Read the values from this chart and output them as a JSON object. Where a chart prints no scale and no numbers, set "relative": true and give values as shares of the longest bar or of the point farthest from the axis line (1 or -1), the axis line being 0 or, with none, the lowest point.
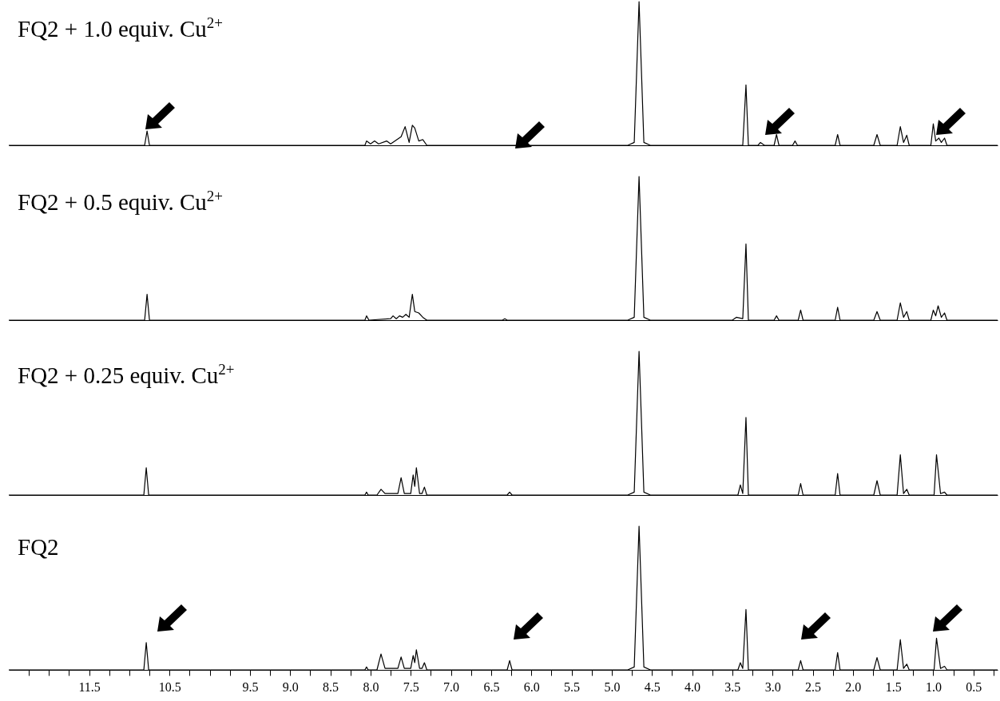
{
  "chart_data": [
    {
      "type": "line",
      "relative": true,
      "title": "FQ2 + 1.0 equiv. Cu$^{2+}$",
      "color": "#000000",
      "xlim": [
        12.5,
        0.2
      ],
      "tick_labels": false,
      "x": [
        12.5,
        10.81,
        10.78,
        10.75,
        8.07,
        8.05,
        8.0,
        7.95,
        7.9,
        7.8,
        7.75,
        7.62,
        7.57,
        7.52,
        7.48,
        7.45,
        7.4,
        7.35,
        7.3,
        4.8,
        4.72,
        4.66,
        4.6,
        4.52,
        3.37,
        3.33,
        3.3,
        3.18,
        3.15,
        3.1,
        2.98,
        2.95,
        2.92,
        2.75,
        2.72,
        2.69,
        2.22,
        2.19,
        2.16,
        1.74,
        1.7,
        1.66,
        1.45,
        1.41,
        1.37,
        1.33,
        1.3,
        1.03,
        1.0,
        0.97,
        0.93,
        0.9,
        0.86,
        0.83,
        0.2
      ],
      "values": [
        0,
        0,
        0.1,
        0,
        0,
        0.03,
        0.01,
        0.03,
        0.01,
        0.03,
        0.01,
        0.06,
        0.13,
        0.02,
        0.14,
        0.12,
        0.03,
        0.04,
        0,
        0,
        0.02,
        1,
        0.02,
        0,
        0,
        0.42,
        0,
        0,
        0.02,
        0,
        0,
        0.075,
        0,
        0,
        0.03,
        0,
        0,
        0.075,
        0,
        0,
        0.075,
        0,
        0,
        0.13,
        0.02,
        0.07,
        0,
        0,
        0.15,
        0.03,
        0.05,
        0.02,
        0.05,
        0,
        0
      ]
    },
    {
      "type": "line",
      "relative": true,
      "title": "FQ2 + 0.5 equiv. Cu$^{2+}$",
      "color": "#000000",
      "xlim": [
        12.5,
        0.2
      ],
      "tick_labels": false,
      "x": [
        12.5,
        10.81,
        10.78,
        10.75,
        8.07,
        8.05,
        8.02,
        7.75,
        7.72,
        7.68,
        7.64,
        7.6,
        7.56,
        7.52,
        7.48,
        7.45,
        7.4,
        7.35,
        7.3,
        6.36,
        6.33,
        6.3,
        4.8,
        4.72,
        4.66,
        4.6,
        4.52,
        3.5,
        3.45,
        3.37,
        3.33,
        3.3,
        2.98,
        2.95,
        2.92,
        2.68,
        2.65,
        2.62,
        2.22,
        2.19,
        2.16,
        1.74,
        1.7,
        1.66,
        1.45,
        1.41,
        1.37,
        1.33,
        1.3,
        1.03,
        1.0,
        0.97,
        0.94,
        0.9,
        0.86,
        0.83,
        0.2
      ],
      "values": [
        0,
        0,
        0.18,
        0,
        0,
        0.03,
        0,
        0.01,
        0.03,
        0.01,
        0.03,
        0.02,
        0.04,
        0.02,
        0.18,
        0.06,
        0.05,
        0.02,
        0,
        0,
        0.01,
        0,
        0,
        0.02,
        1,
        0.02,
        0,
        0,
        0.02,
        0.01,
        0.53,
        0,
        0,
        0.03,
        0,
        0,
        0.07,
        0,
        0,
        0.09,
        0,
        0,
        0.06,
        0,
        0,
        0.12,
        0.02,
        0.06,
        0,
        0,
        0.07,
        0.03,
        0.1,
        0.02,
        0.05,
        0,
        0
      ]
    },
    {
      "type": "line",
      "relative": true,
      "title": "FQ2 + 0.25 equiv. Cu$^{2+}$",
      "color": "#000000",
      "xlim": [
        12.5,
        0.2
      ],
      "tick_labels": false,
      "x": [
        12.5,
        10.82,
        10.79,
        10.76,
        8.07,
        8.05,
        8.03,
        7.92,
        7.87,
        7.82,
        7.66,
        7.62,
        7.58,
        7.5,
        7.47,
        7.45,
        7.43,
        7.39,
        7.36,
        7.33,
        7.3,
        6.3,
        6.27,
        6.24,
        4.8,
        4.72,
        4.66,
        4.6,
        4.52,
        3.43,
        3.4,
        3.37,
        3.33,
        3.3,
        2.68,
        2.65,
        2.62,
        2.22,
        2.19,
        2.16,
        1.74,
        1.7,
        1.66,
        1.45,
        1.41,
        1.37,
        1.33,
        1.3,
        0.99,
        0.96,
        0.91,
        0.86,
        0.83,
        0.2
      ],
      "values": [
        0,
        0,
        0.19,
        0,
        0,
        0.02,
        0,
        0,
        0.04,
        0.01,
        0.01,
        0.12,
        0.01,
        0.01,
        0.14,
        0.06,
        0.19,
        0.01,
        0.01,
        0.055,
        0,
        0,
        0.02,
        0,
        0,
        0.02,
        1,
        0.02,
        0,
        0,
        0.07,
        0.01,
        0.54,
        0,
        0,
        0.08,
        0,
        0,
        0.15,
        0,
        0,
        0.1,
        0,
        0,
        0.28,
        0.01,
        0.04,
        0,
        0,
        0.28,
        0.01,
        0.02,
        0,
        0
      ]
    },
    {
      "type": "line",
      "relative": true,
      "title": "FQ2",
      "color": "#000000",
      "xlim": [
        12.5,
        0.2
      ],
      "tick_labels": "x",
      "xticks": [
        {
          "value": 12.25,
          "label": null
        },
        {
          "value": 12,
          "label": null
        },
        {
          "value": 11.75,
          "label": null
        },
        11.5,
        {
          "value": 11.25,
          "label": null
        },
        {
          "value": 11,
          "label": null
        },
        {
          "value": 10.75,
          "label": null
        },
        10.5,
        {
          "value": 10.25,
          "label": null
        },
        {
          "value": 10,
          "label": null
        },
        {
          "value": 9.75,
          "label": null
        },
        9.5,
        {
          "value": 9.25,
          "label": null
        },
        {
          "value": 9,
          "label": "9.0"
        },
        {
          "value": 8.75,
          "label": null
        },
        8.5,
        {
          "value": 8.25,
          "label": null
        },
        {
          "value": 8,
          "label": "8.0"
        },
        {
          "value": 7.75,
          "label": null
        },
        7.5,
        {
          "value": 7.25,
          "label": null
        },
        {
          "value": 7,
          "label": "7.0"
        },
        {
          "value": 6.75,
          "label": null
        },
        6.5,
        {
          "value": 6.25,
          "label": null
        },
        {
          "value": 6,
          "label": "6.0"
        },
        {
          "value": 5.75,
          "label": null
        },
        5.5,
        {
          "value": 5.25,
          "label": null
        },
        {
          "value": 5,
          "label": "5.0"
        },
        {
          "value": 4.75,
          "label": null
        },
        4.5,
        {
          "value": 4.25,
          "label": null
        },
        {
          "value": 4,
          "label": "4.0"
        },
        {
          "value": 3.75,
          "label": null
        },
        3.5,
        {
          "value": 3.25,
          "label": null
        },
        {
          "value": 3,
          "label": "3.0"
        },
        {
          "value": 2.75,
          "label": null
        },
        2.5,
        {
          "value": 2.25,
          "label": null
        },
        {
          "value": 2,
          "label": "2.0"
        },
        {
          "value": 1.75,
          "label": null
        },
        1.5,
        {
          "value": 1.25,
          "label": null
        },
        {
          "value": 1,
          "label": "1.0"
        },
        {
          "value": 0.75,
          "label": null
        },
        0.5,
        {
          "value": 0.25,
          "label": null
        }
      ],
      "x": [
        12.5,
        10.82,
        10.79,
        10.76,
        8.07,
        8.05,
        8.03,
        7.92,
        7.87,
        7.82,
        7.66,
        7.62,
        7.58,
        7.5,
        7.47,
        7.45,
        7.43,
        7.39,
        7.36,
        7.33,
        7.3,
        6.3,
        6.27,
        6.24,
        4.8,
        4.72,
        4.66,
        4.6,
        4.52,
        3.43,
        3.4,
        3.37,
        3.33,
        3.3,
        2.68,
        2.65,
        2.62,
        2.22,
        2.19,
        2.16,
        1.74,
        1.7,
        1.66,
        1.45,
        1.41,
        1.37,
        1.33,
        1.3,
        0.99,
        0.96,
        0.91,
        0.86,
        0.83,
        0.2
      ],
      "values": [
        0,
        0,
        0.19,
        0,
        0,
        0.02,
        0,
        0,
        0.11,
        0.01,
        0.01,
        0.09,
        0.01,
        0.01,
        0.1,
        0.05,
        0.14,
        0.01,
        0.01,
        0.05,
        0,
        0,
        0.065,
        0,
        0,
        0.02,
        1,
        0.02,
        0,
        0,
        0.05,
        0.01,
        0.42,
        0,
        0,
        0.065,
        0,
        0,
        0.12,
        0,
        0,
        0.085,
        0,
        0,
        0.21,
        0.01,
        0.04,
        0,
        0,
        0.22,
        0.01,
        0.025,
        0,
        0
      ]
    }
  ]
}
